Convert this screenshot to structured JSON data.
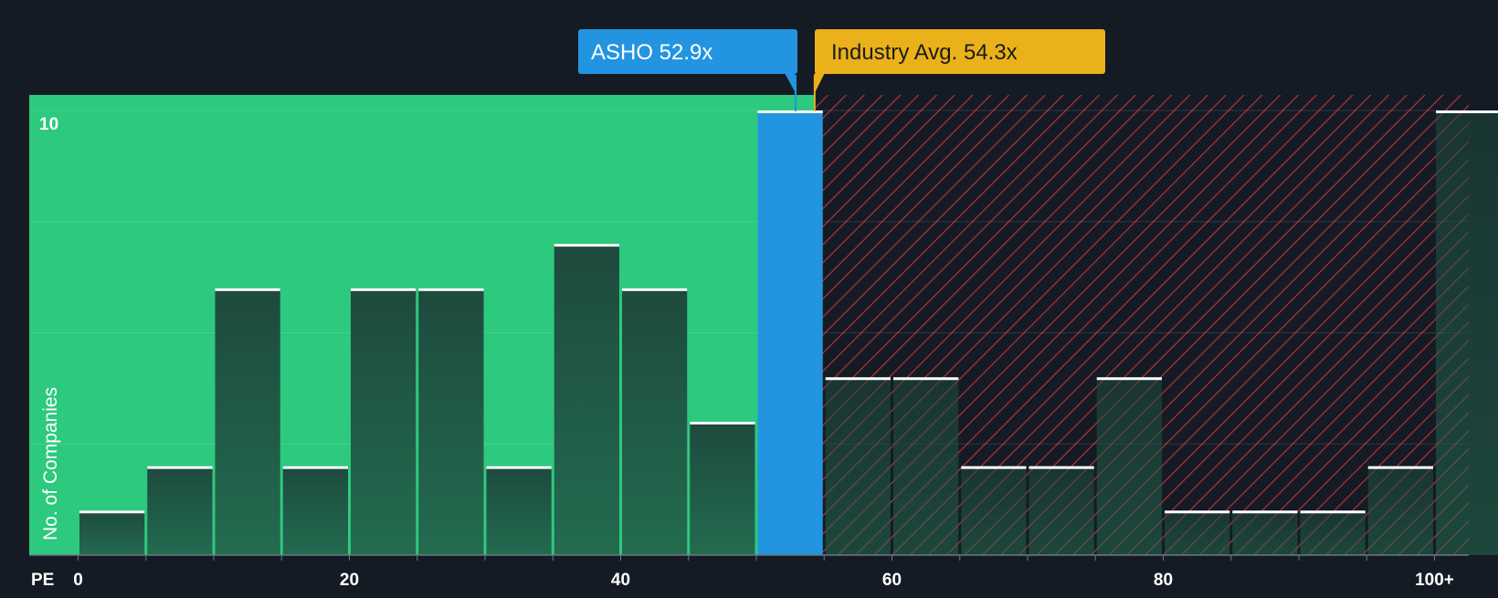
{
  "chart_data": {
    "type": "bar",
    "title": "",
    "xlabel": "PE",
    "ylabel": "No. of Companies",
    "x_tick_labels": [
      "0",
      "20",
      "40",
      "60",
      "80",
      "100+"
    ],
    "x_tick_values": [
      0,
      20,
      40,
      60,
      80,
      100
    ],
    "y_tick_labels": [
      "10"
    ],
    "y_tick_values": [
      10
    ],
    "ylim": [
      0,
      10
    ],
    "xlim": [
      -3.5,
      102.5
    ],
    "bin_width": 5,
    "bins": [
      {
        "start": 0,
        "end": 5,
        "value": 1
      },
      {
        "start": 5,
        "end": 10,
        "value": 2
      },
      {
        "start": 10,
        "end": 15,
        "value": 6
      },
      {
        "start": 15,
        "end": 20,
        "value": 2
      },
      {
        "start": 20,
        "end": 25,
        "value": 6
      },
      {
        "start": 25,
        "end": 30,
        "value": 6
      },
      {
        "start": 30,
        "end": 35,
        "value": 2
      },
      {
        "start": 35,
        "end": 40,
        "value": 7
      },
      {
        "start": 40,
        "end": 45,
        "value": 6
      },
      {
        "start": 45,
        "end": 50,
        "value": 3
      },
      {
        "start": 50,
        "end": 55,
        "value": 10
      },
      {
        "start": 55,
        "end": 60,
        "value": 4
      },
      {
        "start": 60,
        "end": 65,
        "value": 4
      },
      {
        "start": 65,
        "end": 70,
        "value": 2
      },
      {
        "start": 70,
        "end": 75,
        "value": 2
      },
      {
        "start": 75,
        "end": 80,
        "value": 4
      },
      {
        "start": 80,
        "end": 85,
        "value": 1
      },
      {
        "start": 85,
        "end": 90,
        "value": 1
      },
      {
        "start": 90,
        "end": 95,
        "value": 1
      },
      {
        "start": 95,
        "end": 100,
        "value": 2
      },
      {
        "start": 100,
        "end": 105,
        "value": 10
      }
    ],
    "highlight_bin_index": 10,
    "company": {
      "label": "ASHO 52.9x",
      "value": 52.9
    },
    "industry": {
      "label": "Industry Avg. 54.3x",
      "value": 54.3
    },
    "colors": {
      "background": "#151b24",
      "undervalued_zone": "#2dc97e",
      "overvalued_zone": "#c0343c",
      "bar_top": "#1d4a3e",
      "bar_bottom": "#236b4f",
      "highlight_bar": "#2394e0",
      "company_callout": "#2394e0",
      "industry_callout": "#eab11a",
      "text": "#ffffff"
    }
  }
}
